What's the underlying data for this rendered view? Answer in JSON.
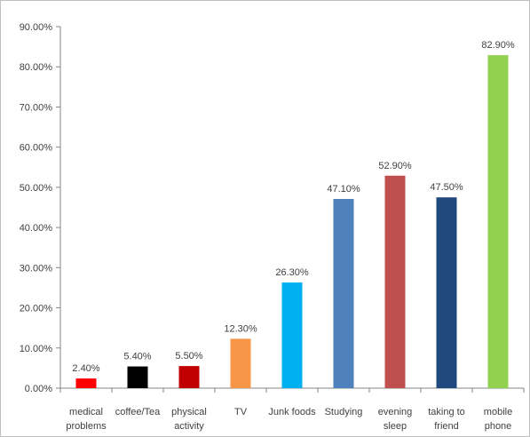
{
  "chart_data": {
    "type": "bar",
    "title": "",
    "xlabel": "",
    "ylabel": "",
    "ylim": [
      0,
      90
    ],
    "y_tick_step": 10,
    "y_tick_labels": [
      "0.00%",
      "10.00%",
      "20.00%",
      "30.00%",
      "40.00%",
      "50.00%",
      "60.00%",
      "70.00%",
      "80.00%",
      "90.00%"
    ],
    "grid": false,
    "legend": "none",
    "categories": [
      [
        "medical",
        "problems"
      ],
      [
        "coffee/Tea"
      ],
      [
        "physical",
        "activity"
      ],
      [
        "TV"
      ],
      [
        "Junk foods"
      ],
      [
        "Studying"
      ],
      [
        "evening",
        "sleep"
      ],
      [
        "taking to",
        "friend"
      ],
      [
        "mobile",
        "phone"
      ]
    ],
    "values": [
      2.4,
      5.4,
      5.5,
      12.3,
      26.3,
      47.1,
      52.9,
      47.5,
      82.9
    ],
    "data_labels": [
      "2.40%",
      "5.40%",
      "5.50%",
      "12.30%",
      "26.30%",
      "47.10%",
      "52.90%",
      "47.50%",
      "82.90%"
    ],
    "colors": [
      "#ff0000",
      "#000000",
      "#c00000",
      "#f79646",
      "#00b0f0",
      "#4f81bd",
      "#c0504d",
      "#1f497d",
      "#92d050"
    ]
  }
}
